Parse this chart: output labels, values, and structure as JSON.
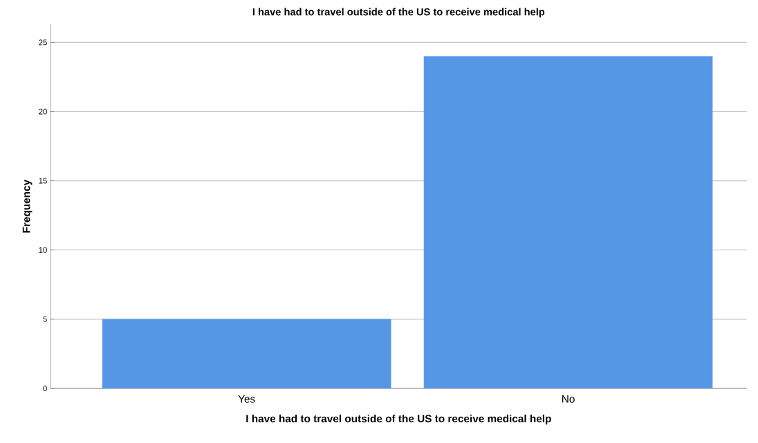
{
  "chart_data": {
    "type": "bar",
    "title": "I have had to travel outside of the US to receive medical help",
    "xlabel": "I have had to travel outside of the US to receive medical help",
    "ylabel": "Frequency",
    "categories": [
      "Yes",
      "No"
    ],
    "values": [
      5,
      24
    ],
    "color": "#5596e5",
    "ylim": [
      0,
      26.3
    ],
    "yticks": [
      0,
      5,
      10,
      15,
      20,
      25
    ],
    "grid": "y"
  }
}
